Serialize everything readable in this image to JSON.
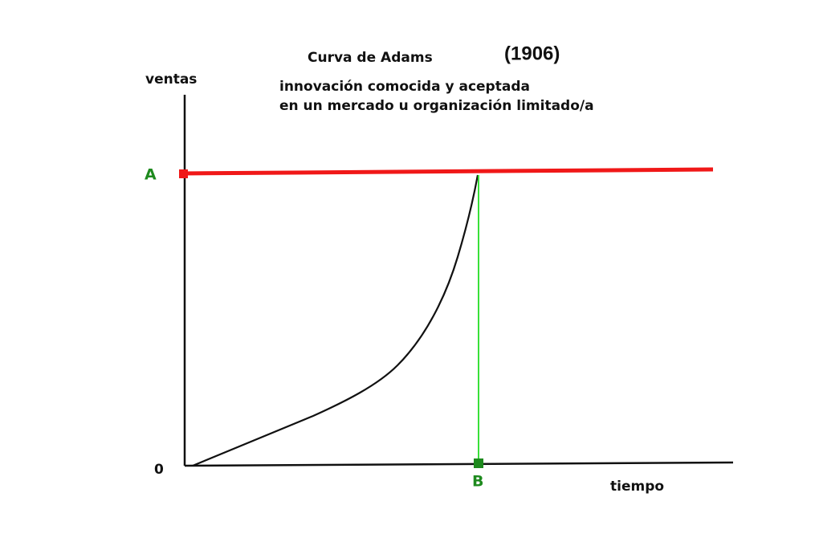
{
  "header": {
    "title": "Curva de Adams",
    "year": "(1906)",
    "description": [
      "innovación comocida y aceptada",
      "en un mercado u organización limitado/a"
    ]
  },
  "axes": {
    "y_label": "ventas",
    "x_label": "tiempo",
    "origin": "0"
  },
  "markers": {
    "saturation": "A",
    "time": "B"
  }
}
